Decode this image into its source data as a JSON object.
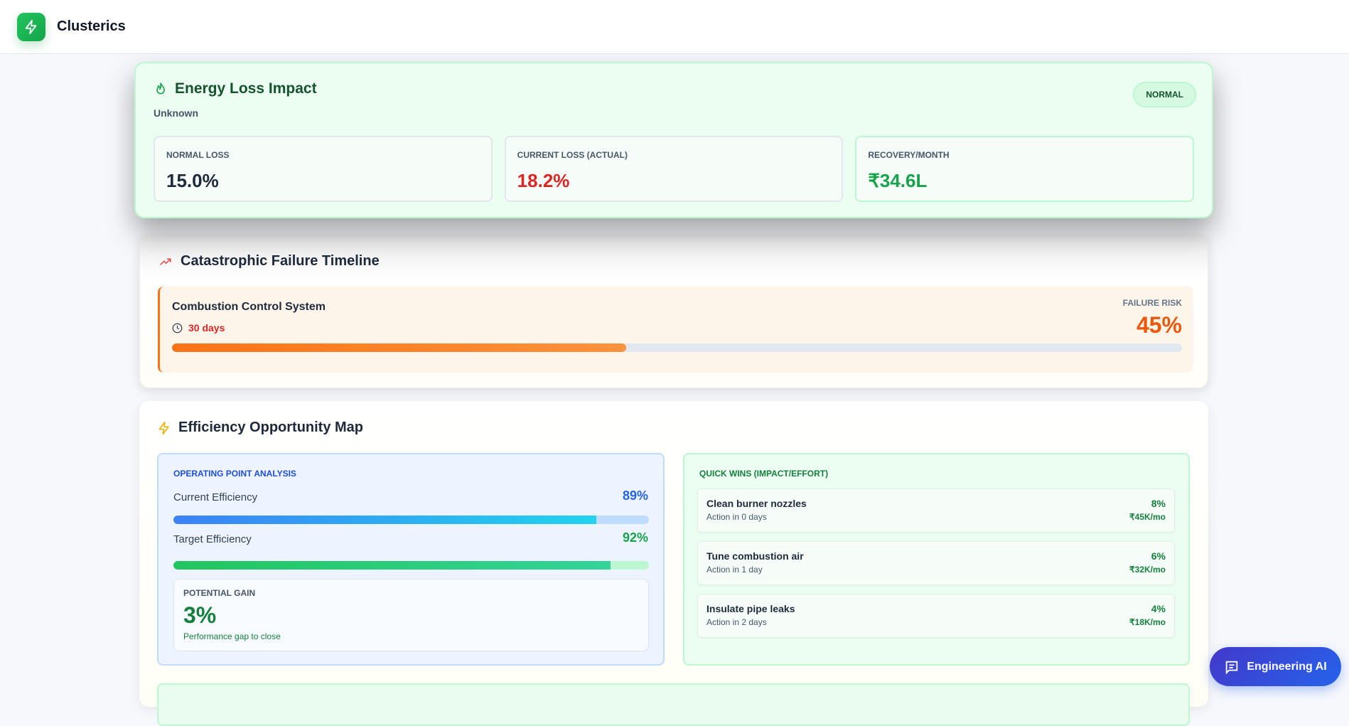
{
  "app": {
    "name": "Clusterics",
    "logo_icon": "bolt-icon"
  },
  "energy": {
    "title": "Energy Loss Impact",
    "icon": "flame-icon",
    "subtitle": "Unknown",
    "badge": "NORMAL",
    "metrics": [
      {
        "label": "NORMAL LOSS",
        "value": "15.0%",
        "color": "#1e293b"
      },
      {
        "label": "CURRENT LOSS (ACTUAL)",
        "value": "18.2%",
        "color": "#dc2626"
      },
      {
        "label": "RECOVERY/MONTH",
        "value": "₹34.6L",
        "color": "#16a34a"
      }
    ]
  },
  "timeline": {
    "title": "Catastrophic Failure Timeline",
    "icon": "trending-up-icon",
    "items": [
      {
        "name": "Combustion Control System",
        "days": "30 days",
        "risk_label": "FAILURE RISK",
        "risk": "45%",
        "risk_value": 45
      }
    ]
  },
  "efficiency": {
    "title": "Efficiency Opportunity Map",
    "icon": "zap-icon",
    "operating": {
      "label": "OPERATING POINT ANALYSIS",
      "current_label": "Current Efficiency",
      "current": "89%",
      "current_value": 89,
      "target_label": "Target Efficiency",
      "target": "92%",
      "target_value": 92,
      "gain_label": "POTENTIAL GAIN",
      "gain": "3%",
      "gain_note": "Performance gap to close"
    },
    "quick_wins": {
      "label": "QUICK WINS (IMPACT/EFFORT)",
      "items": [
        {
          "name": "Clean burner nozzles",
          "action": "Action in 0 days",
          "impact": "8%",
          "savings": "₹45K/mo"
        },
        {
          "name": "Tune combustion air",
          "action": "Action in 1 day",
          "impact": "6%",
          "savings": "₹32K/mo"
        },
        {
          "name": "Insulate pipe leaks",
          "action": "Action in 2 days",
          "impact": "4%",
          "savings": "₹18K/mo"
        }
      ]
    }
  },
  "assistant": {
    "label": "Engineering AI",
    "icon": "chat-icon"
  }
}
